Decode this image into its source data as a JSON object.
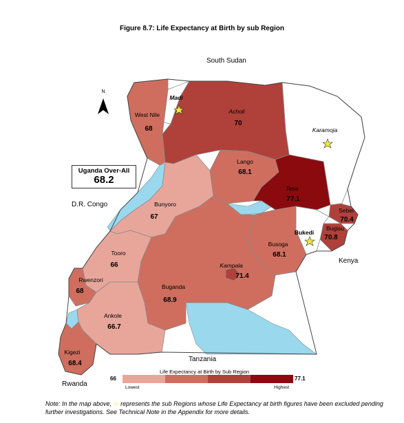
{
  "title": "Figure 8.7: Life Expectancy at Birth by sub Region",
  "north_label": "N",
  "countries": {
    "south_sudan": "South Sudan",
    "drc": "D.R. Congo",
    "kenya": "Kenya",
    "tanzania": "Tanzania",
    "rwanda": "Rwanda"
  },
  "overall": {
    "label": "Uganda Over-All",
    "value": "68.2"
  },
  "regions": [
    {
      "name": "West Nile",
      "value": "68"
    },
    {
      "name": "Madi",
      "value": ""
    },
    {
      "name": "Acholi",
      "value": "70"
    },
    {
      "name": "Karamoja",
      "value": ""
    },
    {
      "name": "Lango",
      "value": "68.1"
    },
    {
      "name": "Teso",
      "value": "77.1"
    },
    {
      "name": "Sebei",
      "value": "70.4"
    },
    {
      "name": "Bugisu",
      "value": "70.8"
    },
    {
      "name": "Bukedi",
      "value": ""
    },
    {
      "name": "Bunyoro",
      "value": "67"
    },
    {
      "name": "Busoga",
      "value": "68.1"
    },
    {
      "name": "Tooro",
      "value": "66"
    },
    {
      "name": "Kampala",
      "value": "71.4"
    },
    {
      "name": "Rwenzori",
      "value": "68"
    },
    {
      "name": "Buganda",
      "value": "68.9"
    },
    {
      "name": "Ankole",
      "value": "66.7"
    },
    {
      "name": "Kigezi",
      "value": "68.4"
    }
  ],
  "legend": {
    "title": "Life Expectancy at Birth by Sub Region",
    "min": "66",
    "max": "77.1",
    "low_label": "Lowest",
    "high_label": "Highest",
    "colors": [
      "#e8a69b",
      "#cf6e5e",
      "#b0403a",
      "#8b0a0e"
    ]
  },
  "colors": {
    "lightest": "#e8a69b",
    "light": "#cf6e5e",
    "dark": "#b0403a",
    "darkest": "#8b0a0e",
    "water": "#9ad8ee",
    "excluded": "#ffffff",
    "star": "#f2ea3a"
  },
  "note": {
    "prefix": "Note: In the map above, ",
    "suffix": " represents the sub Regions whose Life Expectancy at birth figures have been excluded pending further investigations. See Technical Note in the Appendix for more details."
  }
}
